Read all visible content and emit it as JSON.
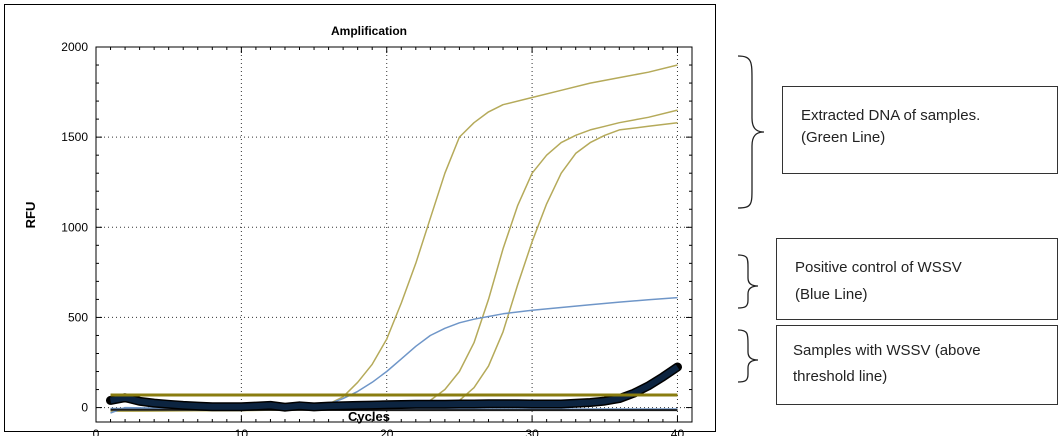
{
  "chart_data": {
    "type": "line",
    "title": "Amplification",
    "xlabel": "Cycles",
    "ylabel": "RFU",
    "xlim": [
      0,
      41
    ],
    "ylim": [
      -80,
      2000
    ],
    "xticks": [
      0,
      10,
      20,
      30,
      40
    ],
    "yticks": [
      0,
      500,
      1000,
      1500,
      2000
    ],
    "grid": "dotted",
    "threshold": 70,
    "colors": {
      "green": "#b5aa5a",
      "blue": "#6f96c8",
      "threshold": "#8a7d10",
      "flat": "#1a1a1a",
      "thick_fill": "#0c2440"
    },
    "series": [
      {
        "color_key": "green",
        "width": 1.5,
        "x": [
          1,
          5,
          10,
          15,
          16,
          17,
          18,
          19,
          20,
          21,
          22,
          23,
          24,
          25,
          26,
          27,
          28,
          30,
          32,
          34,
          36,
          38,
          40
        ],
        "y": [
          -20,
          -18,
          -14,
          0,
          20,
          60,
          140,
          240,
          380,
          580,
          800,
          1050,
          1300,
          1500,
          1580,
          1640,
          1680,
          1720,
          1760,
          1800,
          1830,
          1860,
          1900
        ]
      },
      {
        "color_key": "green",
        "width": 1.5,
        "x": [
          1,
          10,
          20,
          22,
          23,
          24,
          25,
          26,
          27,
          28,
          29,
          30,
          31,
          32,
          33,
          34,
          35,
          36,
          38,
          40
        ],
        "y": [
          -20,
          -16,
          -6,
          10,
          40,
          100,
          200,
          360,
          600,
          880,
          1120,
          1300,
          1400,
          1470,
          1510,
          1540,
          1560,
          1580,
          1610,
          1650
        ]
      },
      {
        "color_key": "green",
        "width": 1.5,
        "x": [
          1,
          10,
          20,
          24,
          25,
          26,
          27,
          28,
          29,
          30,
          31,
          32,
          33,
          34,
          35,
          36,
          38,
          40
        ],
        "y": [
          -20,
          -16,
          -8,
          10,
          40,
          110,
          230,
          420,
          680,
          920,
          1130,
          1300,
          1410,
          1470,
          1510,
          1540,
          1560,
          1580
        ]
      },
      {
        "color_key": "blue",
        "width": 1.5,
        "x": [
          1,
          2,
          10,
          15,
          16,
          17,
          18,
          19,
          20,
          21,
          22,
          23,
          24,
          25,
          26,
          27,
          28,
          30,
          32,
          34,
          36,
          38,
          40
        ],
        "y": [
          -30,
          0,
          -10,
          0,
          20,
          50,
          90,
          140,
          200,
          270,
          340,
          400,
          440,
          470,
          490,
          505,
          520,
          540,
          555,
          570,
          585,
          598,
          610
        ]
      },
      {
        "color_key": "blue",
        "width": 1.5,
        "x": [
          1,
          5,
          10,
          15,
          20,
          25,
          30,
          35,
          40
        ],
        "y": [
          -5,
          -6,
          -6,
          -7,
          -8,
          -8,
          -8,
          -8,
          -8
        ]
      },
      {
        "color_key": "flat",
        "width": 2,
        "x": [
          1,
          5,
          10,
          15,
          20,
          25,
          30,
          35,
          40
        ],
        "y": [
          -12,
          -12,
          -13,
          -13,
          -14,
          -14,
          -14,
          -14,
          -14
        ]
      },
      {
        "color_key": "thick_fill",
        "width": 6,
        "outline": true,
        "x": [
          1,
          2,
          3,
          4,
          5,
          6,
          7,
          8,
          9,
          10,
          11,
          12,
          13,
          14,
          15,
          16,
          17,
          18,
          19,
          20,
          21,
          22,
          23,
          24,
          25,
          26,
          27,
          28,
          29,
          30,
          31,
          32,
          33,
          34,
          35,
          36,
          37,
          38,
          39,
          40
        ],
        "y": [
          40,
          55,
          35,
          25,
          18,
          12,
          8,
          5,
          5,
          5,
          8,
          12,
          2,
          10,
          4,
          8,
          10,
          12,
          14,
          16,
          17,
          18,
          18,
          19,
          20,
          20,
          21,
          21,
          21,
          20,
          20,
          20,
          24,
          28,
          36,
          50,
          80,
          120,
          170,
          225
        ]
      }
    ]
  },
  "callouts": [
    {
      "lines": [
        "Extracted DNA of  samples.",
        "(Green Line)"
      ]
    },
    {
      "lines": [
        "Positive control of WSSV",
        "(Blue Line)"
      ]
    },
    {
      "lines": [
        "Samples with WSSV (above",
        "threshold line)"
      ]
    }
  ]
}
